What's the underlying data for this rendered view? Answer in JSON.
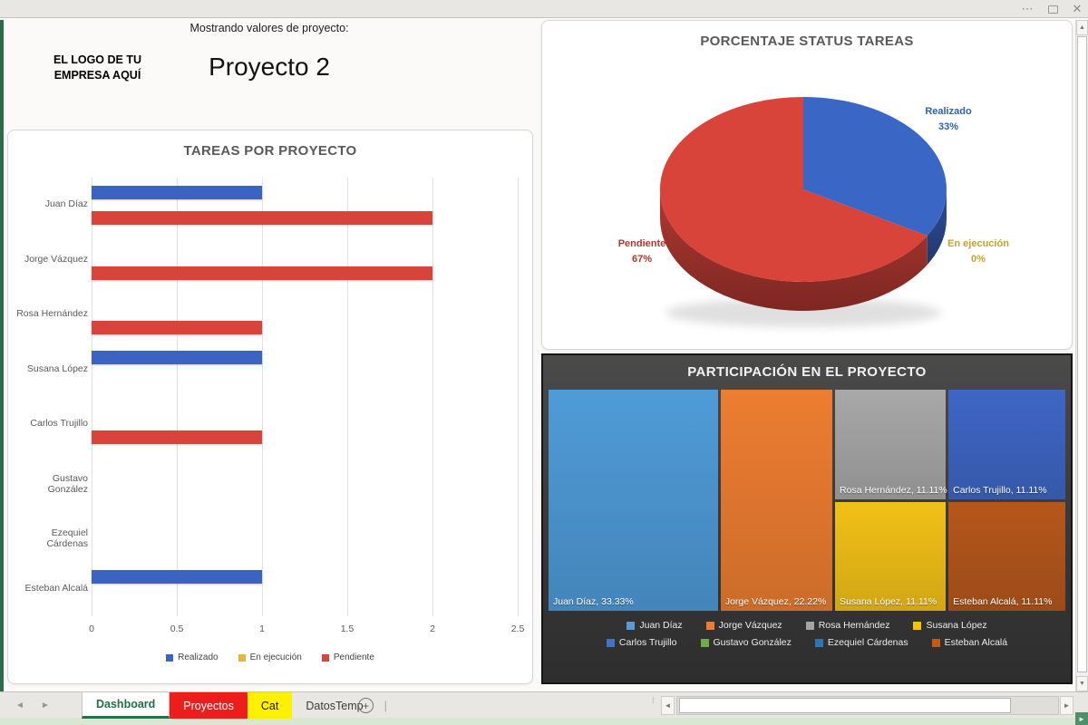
{
  "window": {
    "menu_icon": "⋯",
    "close_icon": "✕",
    "up_icon": "▲",
    "down_icon": "▼",
    "left_icon": "◄",
    "right_icon": "►",
    "dots_icon": "⁞",
    "add_sheet_icon": "+"
  },
  "header": {
    "subtitle": "Mostrando valores de proyecto:",
    "project_title": "Proyecto 2",
    "logo_text": "EL LOGO DE TU\nEMPRESA AQUÍ",
    "logo_color": "#D63B35"
  },
  "chart_data": [
    {
      "type": "bar",
      "title": "TAREAS POR PROYECTO",
      "orientation": "horizontal",
      "categories": [
        "Juan Díaz",
        "Jorge Vázquez",
        "Rosa Hernández",
        "Susana López",
        "Carlos Trujillo",
        "Gustavo González",
        "Ezequiel Cárdenas",
        "Esteban Alcalá"
      ],
      "series": [
        {
          "name": "Realizado",
          "color": "#3A63C4",
          "values": [
            1,
            0,
            0,
            1,
            0,
            0,
            0,
            1
          ]
        },
        {
          "name": "En ejecución",
          "color": "#E9B72F",
          "values": [
            0,
            0,
            0,
            0,
            0,
            0,
            0,
            0
          ]
        },
        {
          "name": "Pendiente",
          "color": "#D8443A",
          "values": [
            2,
            2,
            1,
            0,
            1,
            0,
            0,
            0
          ]
        }
      ],
      "xlim": [
        0,
        2.5
      ],
      "x_ticks": [
        "0",
        "0.5",
        "1",
        "1.5",
        "2",
        "2.5"
      ],
      "grid": true,
      "legend_position": "bottom"
    },
    {
      "type": "pie",
      "title": "PORCENTAJE STATUS TAREAS",
      "style": "3d",
      "slices": [
        {
          "name": "Realizado",
          "pct": "33%",
          "value": 33,
          "color": "#3A66C6",
          "label_color": "#2E5FA8"
        },
        {
          "name": "Pendiente",
          "pct": "67%",
          "value": 67,
          "color": "#D8443A",
          "label_color": "#B3362B"
        },
        {
          "name": "En ejecución",
          "pct": "0%",
          "value": 0,
          "color": "#E9B72F",
          "label_color": "#C9A227"
        }
      ]
    },
    {
      "type": "treemap",
      "title": "PARTICIPACIÓN EN EL PROYECTO",
      "tiles": [
        {
          "name": "Juan Díaz",
          "label": "Juan Díaz, 33.33%",
          "value": 33.33,
          "color": "#4F9BD8"
        },
        {
          "name": "Jorge Vázquez",
          "label": "Jorge Vázquez, 22.22%",
          "value": 22.22,
          "color": "#ED7D31"
        },
        {
          "name": "Rosa Hernández",
          "label": "Rosa Hernández, 11.11%",
          "value": 11.11,
          "color": "#A8A8A8"
        },
        {
          "name": "Susana López",
          "label": "Susana López, 11.11%",
          "value": 11.11,
          "color": "#F2C117"
        },
        {
          "name": "Carlos Trujillo",
          "label": "Carlos Trujillo, 11.11%",
          "value": 11.11,
          "color": "#3E66C5"
        },
        {
          "name": "Esteban Alcalá",
          "label": "Esteban Alcalá, 11.11%",
          "value": 11.11,
          "color": "#B5571C"
        }
      ],
      "legend": [
        {
          "name": "Juan Díaz",
          "color": "#5B9BD5"
        },
        {
          "name": "Jorge Vázquez",
          "color": "#ED7D31"
        },
        {
          "name": "Rosa Hernández",
          "color": "#A5A5A5"
        },
        {
          "name": "Susana López",
          "color": "#FFC000"
        },
        {
          "name": "Carlos Trujillo",
          "color": "#4472C4"
        },
        {
          "name": "Gustavo González",
          "color": "#70AD47"
        },
        {
          "name": "Ezequiel Cárdenas",
          "color": "#2E75B6"
        },
        {
          "name": "Esteban Alcalá",
          "color": "#C55A11"
        }
      ]
    }
  ],
  "tabs": [
    {
      "label": "Dashboard",
      "style": "active",
      "bg": "#FFFFFF",
      "fg": "#1E7145"
    },
    {
      "label": "Proyectos",
      "style": "solid",
      "bg": "#EE1D1D",
      "fg": "#FFFFFF"
    },
    {
      "label": "Cat",
      "style": "solid",
      "bg": "#FFF000",
      "fg": "#1a1a1a"
    },
    {
      "label": "DatosTemp",
      "style": "plain",
      "bg": "",
      "fg": "#3A3A3A"
    }
  ]
}
